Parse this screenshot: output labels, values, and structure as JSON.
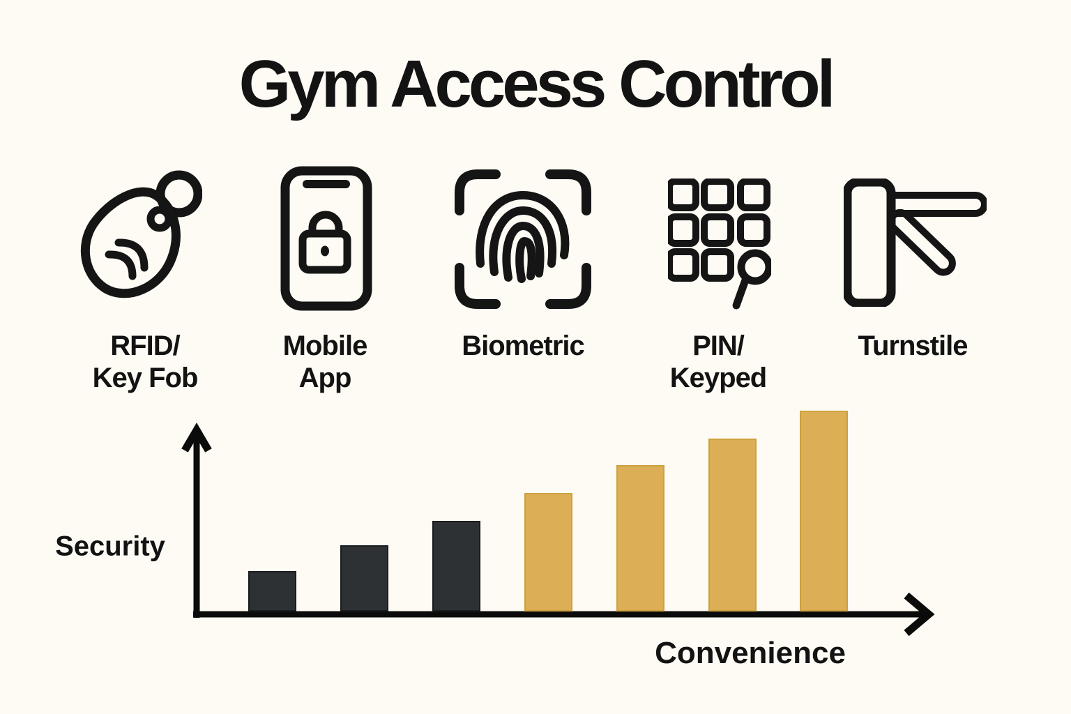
{
  "title": "Gym Access Control",
  "access_methods": [
    {
      "id": "rfid-key-fob",
      "line1": "RFID/",
      "line2": "Key Fob",
      "icon": "key-fob-icon"
    },
    {
      "id": "mobile-app",
      "line1": "Mobile",
      "line2": "App",
      "icon": "mobile-phone-lock-icon"
    },
    {
      "id": "biometric",
      "line1": "Biometric",
      "line2": "",
      "icon": "fingerprint-scan-icon"
    },
    {
      "id": "pin-keypad",
      "line1": "PIN/",
      "line2": "Keyped",
      "icon": "keypad-icon"
    },
    {
      "id": "turnstile",
      "line1": "Turnstile",
      "line2": "",
      "icon": "turnstile-icon"
    }
  ],
  "chart_data": {
    "type": "bar",
    "title": "",
    "xlabel": "Convenience",
    "ylabel": "Security",
    "categories": [
      "",
      "",
      "",
      "",
      "",
      "",
      ""
    ],
    "values": [
      20,
      33,
      45,
      59,
      73,
      86,
      100
    ],
    "value_note": "seven unlabeled bars, relative heights as % of tallest, rising steadily left to right",
    "bar_colors": [
      "#2D3133",
      "#2D3133",
      "#2D3133",
      "#DCAE55",
      "#DCAE55",
      "#DCAE55",
      "#DCAE55"
    ],
    "bar_border_colors": [
      "#1A1C1D",
      "#1A1C1D",
      "#1A1C1D",
      "#CDA13F",
      "#CDA13F",
      "#CDA13F",
      "#CDA13F"
    ],
    "ylim": [
      0,
      100
    ],
    "grid": false,
    "legend": "none",
    "axis_style": "plain black axes with arrowheads, no ticks or tick labels"
  },
  "colors": {
    "background": "#FDFBF4",
    "ink": "#131313",
    "dark_bar": "#2D3133",
    "gold_bar": "#DCAE55",
    "axis": "#0B0B0B"
  }
}
